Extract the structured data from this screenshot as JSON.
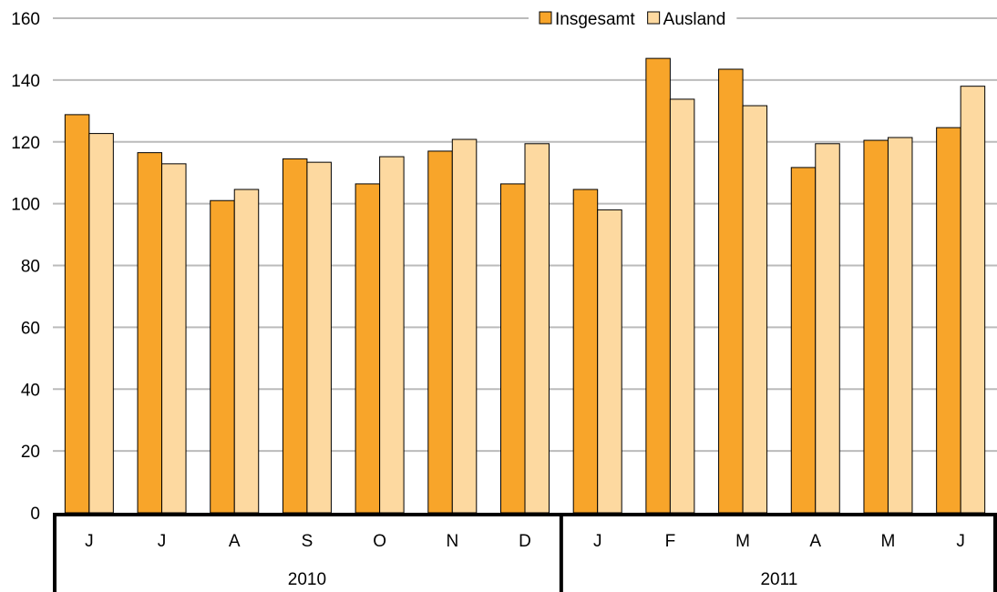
{
  "chart_data": {
    "type": "bar",
    "categories": [
      "J",
      "J",
      "A",
      "S",
      "O",
      "N",
      "D",
      "J",
      "F",
      "M",
      "A",
      "M",
      "J"
    ],
    "groups": [
      {
        "label": "2010",
        "span": 7
      },
      {
        "label": "2011",
        "span": 6
      }
    ],
    "series": [
      {
        "name": "Insgesamt",
        "values": [
          128.8,
          116.5,
          101.0,
          114.5,
          106.4,
          117.0,
          106.4,
          104.6,
          147.0,
          143.5,
          111.7,
          120.5,
          124.6
        ]
      },
      {
        "name": "Ausland",
        "values": [
          122.7,
          112.9,
          104.6,
          113.4,
          115.2,
          120.8,
          119.4,
          98.0,
          133.8,
          131.7,
          119.4,
          121.4,
          138.0
        ]
      }
    ],
    "ylim": [
      0,
      160
    ],
    "yticks": [
      0,
      20,
      40,
      60,
      80,
      100,
      120,
      140,
      160
    ],
    "grid": true,
    "legend_position": "top-right",
    "colors": {
      "Insgesamt": "#F8A52A",
      "Ausland": "#FDD9A0",
      "grid": "#BBBBBB",
      "axis": "#000000"
    }
  }
}
